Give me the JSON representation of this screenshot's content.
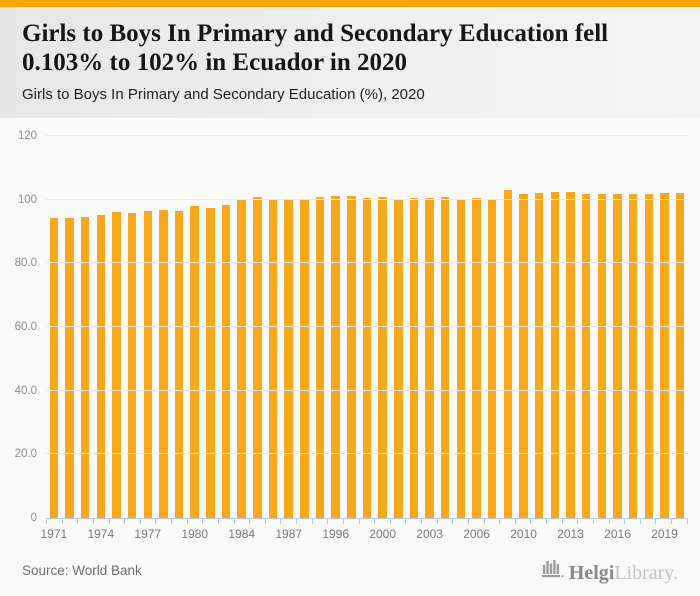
{
  "page": {
    "top_bar_color": "#F2A702"
  },
  "header": {
    "title_line1": "Girls to Boys In Primary and Secondary Education fell",
    "title_line2": "0.103% to 102% in Ecuador in 2020",
    "subtitle": "Girls to Boys In Primary and Secondary Education (%), 2020"
  },
  "chart_data": {
    "type": "bar",
    "title": "Girls to Boys In Primary and Secondary Education fell 0.103% to 102% in Ecuador in 2020",
    "subtitle": "Girls to Boys In Primary and Secondary Education (%), 2020",
    "xlabel": "",
    "ylabel": "",
    "ylim": [
      0,
      120
    ],
    "grid": true,
    "legend_position": "none",
    "bar_color": "#F7A81C",
    "values": [
      94.2,
      94.2,
      94.6,
      95.3,
      96.1,
      95.8,
      96.4,
      96.9,
      96.6,
      98.0,
      97.4,
      98.3,
      99.9,
      100.7,
      99.9,
      100.2,
      100.3,
      100.8,
      101.2,
      101.0,
      100.6,
      100.8,
      100.2,
      100.6,
      100.4,
      100.7,
      99.9,
      100.4,
      100.2,
      103.0,
      101.9,
      102.1,
      102.4,
      102.4,
      101.9,
      101.9,
      101.9,
      101.9,
      101.9,
      102.1,
      102.0
    ],
    "x_ticks": [
      {
        "label": "1971",
        "bar_index": 0
      },
      {
        "label": "1974",
        "bar_index": 3
      },
      {
        "label": "1977",
        "bar_index": 6
      },
      {
        "label": "1980",
        "bar_index": 9
      },
      {
        "label": "1984",
        "bar_index": 12
      },
      {
        "label": "1987",
        "bar_index": 15
      },
      {
        "label": "1996",
        "bar_index": 18
      },
      {
        "label": "2000",
        "bar_index": 21
      },
      {
        "label": "2003",
        "bar_index": 24
      },
      {
        "label": "2006",
        "bar_index": 27
      },
      {
        "label": "2010",
        "bar_index": 30
      },
      {
        "label": "2013",
        "bar_index": 33
      },
      {
        "label": "2016",
        "bar_index": 36
      },
      {
        "label": "2019",
        "bar_index": 39
      }
    ],
    "y_ticks": [
      {
        "label": "0",
        "value": 0
      },
      {
        "label": "20.0",
        "value": 20
      },
      {
        "label": "40.0",
        "value": 40
      },
      {
        "label": "60.0",
        "value": 60
      },
      {
        "label": "80.0",
        "value": 80
      },
      {
        "label": "100",
        "value": 100
      },
      {
        "label": "120",
        "value": 120
      }
    ]
  },
  "footer": {
    "source_label": "Source: World Bank",
    "logo_icon": "bar-chart-building-icon",
    "logo_text_primary": "Helgi",
    "logo_text_secondary": "Library."
  }
}
